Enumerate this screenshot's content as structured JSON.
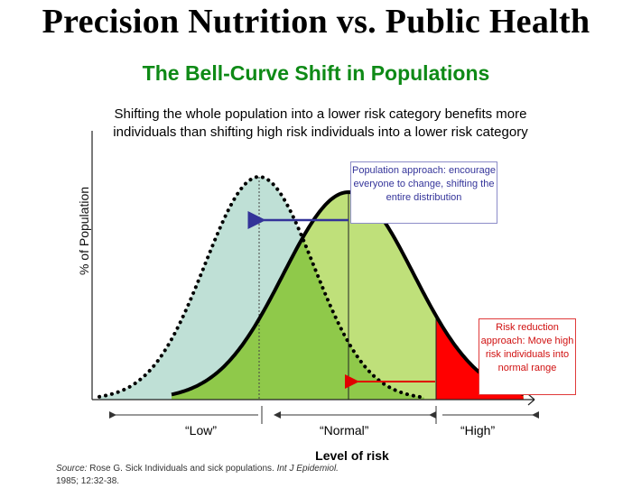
{
  "header": {
    "title": "Precision Nutrition vs. Public Health",
    "subtitle": "The Bell-Curve Shift in Populations",
    "caption": "Shifting the whole population into a lower risk category benefits more individuals than shifting high risk individuals into a lower risk category"
  },
  "chart": {
    "ylabel": "% of Population",
    "xlabel": "Level of risk",
    "categories": [
      "“Low”",
      "“Normal”",
      "“High”"
    ],
    "population_approach": "Population approach: encourage everyone to change, shifting the entire distribution",
    "risk_reduction_approach": "Risk reduction approach: Move high risk individuals into normal range"
  },
  "source": {
    "label": "Source:",
    "text": "Rose G. Sick Individuals and sick populations.",
    "journal": "Int J Epidemiol.",
    "citation": "1985; 12:32-38."
  },
  "colors": {
    "shifted_fill": "#bfe07a",
    "shifted_fill_dark": "#8fc94a",
    "original_fill": "#bfe0d6",
    "high_risk": "#ff0000",
    "arrow_population": "#333399",
    "arrow_risk": "#e00000",
    "subtitle": "#0e8a16"
  }
}
